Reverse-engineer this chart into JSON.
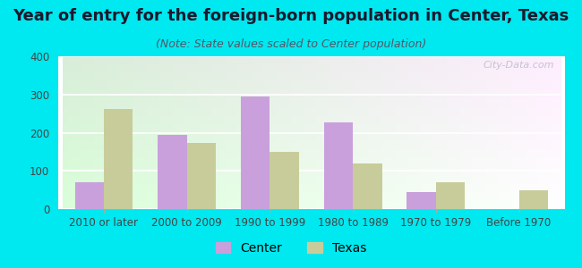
{
  "title": "Year of entry for the foreign-born population in Center, Texas",
  "subtitle": "(Note: State values scaled to Center population)",
  "categories": [
    "2010 or later",
    "2000 to 2009",
    "1990 to 1999",
    "1980 to 1989",
    "1970 to 1979",
    "Before 1970"
  ],
  "center_values": [
    70,
    193,
    295,
    228,
    45,
    0
  ],
  "texas_values": [
    262,
    173,
    150,
    120,
    70,
    48
  ],
  "center_color": "#c9a0dc",
  "texas_color": "#c8cc9a",
  "background_outer": "#00e8f0",
  "ylim": [
    0,
    400
  ],
  "yticks": [
    0,
    100,
    200,
    300,
    400
  ],
  "title_fontsize": 13,
  "subtitle_fontsize": 9,
  "tick_fontsize": 8.5,
  "legend_fontsize": 10,
  "bar_width": 0.35,
  "watermark": "City-Data.com"
}
